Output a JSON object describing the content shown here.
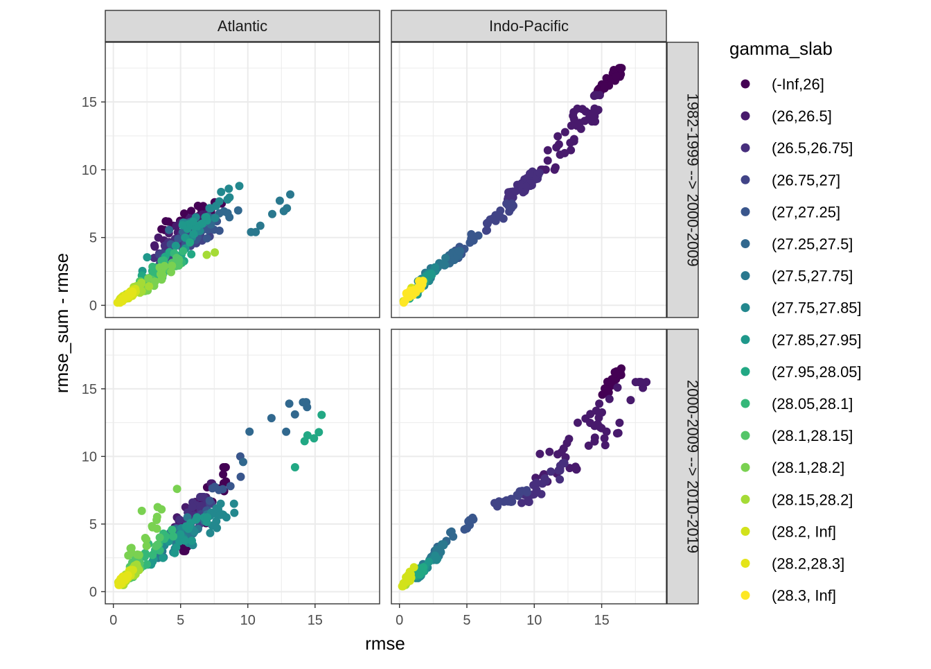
{
  "chart_data": {
    "type": "scatter",
    "xlabel": "rmse",
    "ylabel": "rmse_sum - rmse",
    "xlim": [
      -0.6,
      19.8
    ],
    "ylim": [
      -0.9,
      19.4
    ],
    "x_ticks": [
      0,
      5,
      10,
      15
    ],
    "y_ticks": [
      0,
      5,
      10,
      15
    ],
    "grid": true,
    "legend_placement": "right",
    "column_strips": [
      "Atlantic",
      "Indo-Pacific"
    ],
    "row_strips": [
      "1982-1999 --> 2000-2009",
      "2000-2009 --> 2010-2019"
    ],
    "legend": {
      "title": "gamma_slab",
      "entries": [
        {
          "label": "(-Inf,26]",
          "color": "#440154"
        },
        {
          "label": "(26,26.5]",
          "color": "#481a6c"
        },
        {
          "label": "(26.5,26.75]",
          "color": "#472f7d"
        },
        {
          "label": "(26.75,27]",
          "color": "#414487"
        },
        {
          "label": "(27,27.25]",
          "color": "#39568c"
        },
        {
          "label": "(27.25,27.5]",
          "color": "#31688e"
        },
        {
          "label": "(27.5,27.75]",
          "color": "#2a788e"
        },
        {
          "label": "(27.75,27.85]",
          "color": "#23888e"
        },
        {
          "label": "(27.85,27.95]",
          "color": "#1f988b"
        },
        {
          "label": "(27.95,28.05]",
          "color": "#22a884"
        },
        {
          "label": "(28.05,28.1]",
          "color": "#35b779"
        },
        {
          "label": "(28.1,28.15]",
          "color": "#54c568"
        },
        {
          "label": "(28.1,28.2]",
          "color": "#7ad151"
        },
        {
          "label": "(28.15,28.2]",
          "color": "#a5db36"
        },
        {
          "label": "(28.2, Inf]",
          "color": "#d2e21b"
        },
        {
          "label": "(28.2,28.3]",
          "color": "#e4e419"
        },
        {
          "label": "(28.3, Inf]",
          "color": "#fde725"
        }
      ]
    },
    "panels": [
      {
        "column": "Atlantic",
        "row": "1982-1999 --> 2000-2009",
        "clusters": [
          {
            "group": 0,
            "x_range": [
              3.0,
              8.2
            ],
            "y_range": [
              5.4,
              7.6
            ],
            "n": 28
          },
          {
            "group": 1,
            "x_range": [
              3.0,
              7.0
            ],
            "y_range": [
              4.2,
              6.8
            ],
            "n": 24
          },
          {
            "group": 2,
            "x_range": [
              3.0,
              6.5
            ],
            "y_range": [
              3.5,
              5.8
            ],
            "n": 22
          },
          {
            "group": 3,
            "x_range": [
              3.0,
              7.5
            ],
            "y_range": [
              3.0,
              5.5
            ],
            "n": 22
          },
          {
            "group": 4,
            "x_range": [
              3.5,
              8.0
            ],
            "y_range": [
              3.5,
              6.2
            ],
            "n": 18
          },
          {
            "group": 5,
            "x_range": [
              4.0,
              9.8
            ],
            "y_range": [
              5.4,
              7.0
            ],
            "n": 14
          },
          {
            "group": 6,
            "x_range": [
              10.0,
              13.8
            ],
            "y_range": [
              5.4,
              8.2
            ],
            "n": 8
          },
          {
            "group": 7,
            "x_range": [
              5.0,
              9.5
            ],
            "y_range": [
              5.0,
              8.8
            ],
            "n": 16
          },
          {
            "group": 8,
            "x_range": [
              2.0,
              7.0
            ],
            "y_range": [
              2.0,
              6.5
            ],
            "n": 22
          },
          {
            "group": 9,
            "x_range": [
              2.0,
              6.5
            ],
            "y_range": [
              1.5,
              5.0
            ],
            "n": 22
          },
          {
            "group": 10,
            "x_range": [
              1.5,
              5.5
            ],
            "y_range": [
              1.2,
              4.0
            ],
            "n": 20
          },
          {
            "group": 11,
            "x_range": [
              1.5,
              5.0
            ],
            "y_range": [
              1.0,
              3.5
            ],
            "n": 16
          },
          {
            "group": 12,
            "x_range": [
              1.0,
              4.5
            ],
            "y_range": [
              0.6,
              3.0
            ],
            "n": 14
          },
          {
            "group": 13,
            "x_range": [
              0.8,
              3.0
            ],
            "y_range": [
              0.5,
              2.0
            ],
            "n": 12
          },
          {
            "group": 14,
            "x_range": [
              0.3,
              1.8
            ],
            "y_range": [
              0.2,
              1.2
            ],
            "n": 20
          },
          {
            "group": 15,
            "x_range": [
              0.3,
              1.5
            ],
            "y_range": [
              0.2,
              1.0
            ],
            "n": 14
          },
          {
            "group": 13,
            "x_range": [
              6.2,
              7.7
            ],
            "y_range": [
              3.2,
              3.9
            ],
            "n": 2
          }
        ]
      },
      {
        "column": "Indo-Pacific",
        "row": "1982-1999 --> 2000-2009",
        "clusters": [
          {
            "group": 0,
            "x_range": [
              14.5,
              16.5
            ],
            "y_range": [
              15.5,
              17.5
            ],
            "n": 34
          },
          {
            "group": 1,
            "x_range": [
              10.5,
              15.0
            ],
            "y_range": [
              10.0,
              15.5
            ],
            "n": 40
          },
          {
            "group": 2,
            "x_range": [
              8.0,
              10.5
            ],
            "y_range": [
              7.8,
              10.0
            ],
            "n": 44
          },
          {
            "group": 3,
            "x_range": [
              6.0,
              8.5
            ],
            "y_range": [
              5.5,
              7.5
            ],
            "n": 18
          },
          {
            "group": 4,
            "x_range": [
              4.0,
              6.0
            ],
            "y_range": [
              3.5,
              5.5
            ],
            "n": 16
          },
          {
            "group": 5,
            "x_range": [
              2.5,
              4.5
            ],
            "y_range": [
              2.5,
              4.0
            ],
            "n": 18
          },
          {
            "group": 6,
            "x_range": [
              1.5,
              3.5
            ],
            "y_range": [
              1.5,
              3.5
            ],
            "n": 20
          },
          {
            "group": 7,
            "x_range": [
              1.0,
              2.8
            ],
            "y_range": [
              1.0,
              2.8
            ],
            "n": 16
          },
          {
            "group": 8,
            "x_range": [
              1.0,
              2.5
            ],
            "y_range": [
              0.8,
              2.5
            ],
            "n": 14
          },
          {
            "group": 9,
            "x_range": [
              0.6,
              2.0
            ],
            "y_range": [
              0.5,
              1.8
            ],
            "n": 10
          },
          {
            "group": 14,
            "x_range": [
              0.3,
              1.3
            ],
            "y_range": [
              0.3,
              1.5
            ],
            "n": 8
          },
          {
            "group": 16,
            "x_range": [
              0.0,
              1.8
            ],
            "y_range": [
              0.2,
              1.8
            ],
            "n": 22
          }
        ]
      },
      {
        "column": "Atlantic",
        "row": "2000-2009 --> 2010-2019",
        "clusters": [
          {
            "group": 0,
            "x_range": [
              5.0,
              8.5
            ],
            "y_range": [
              3.0,
              9.2
            ],
            "n": 24
          },
          {
            "group": 1,
            "x_range": [
              4.5,
              7.5
            ],
            "y_range": [
              4.5,
              8.0
            ],
            "n": 20
          },
          {
            "group": 2,
            "x_range": [
              4.0,
              7.0
            ],
            "y_range": [
              4.0,
              7.0
            ],
            "n": 18
          },
          {
            "group": 3,
            "x_range": [
              4.5,
              7.5
            ],
            "y_range": [
              4.0,
              6.5
            ],
            "n": 20
          },
          {
            "group": 4,
            "x_range": [
              6.5,
              10.0
            ],
            "y_range": [
              6.0,
              10.0
            ],
            "n": 10
          },
          {
            "group": 5,
            "x_range": [
              8.5,
              14.5
            ],
            "y_range": [
              9.5,
              14.0
            ],
            "n": 10
          },
          {
            "group": 6,
            "x_range": [
              3.0,
              7.0
            ],
            "y_range": [
              2.5,
              6.0
            ],
            "n": 24
          },
          {
            "group": 7,
            "x_range": [
              3.0,
              9.0
            ],
            "y_range": [
              2.5,
              6.5
            ],
            "n": 26
          },
          {
            "group": 8,
            "x_range": [
              2.5,
              7.0
            ],
            "y_range": [
              2.0,
              5.5
            ],
            "n": 24
          },
          {
            "group": 9,
            "x_range": [
              13.5,
              16.0
            ],
            "y_range": [
              9.2,
              13.3
            ],
            "n": 6
          },
          {
            "group": 10,
            "x_range": [
              1.5,
              4.5
            ],
            "y_range": [
              1.5,
              5.0
            ],
            "n": 18
          },
          {
            "group": 11,
            "x_range": [
              0.8,
              3.5
            ],
            "y_range": [
              1.0,
              4.0
            ],
            "n": 16
          },
          {
            "group": 12,
            "x_range": [
              1.0,
              3.5
            ],
            "y_range": [
              2.0,
              6.0
            ],
            "n": 14
          },
          {
            "group": 13,
            "x_range": [
              0.5,
              2.0
            ],
            "y_range": [
              0.5,
              2.0
            ],
            "n": 16
          },
          {
            "group": 14,
            "x_range": [
              0.3,
              1.5
            ],
            "y_range": [
              0.5,
              1.6
            ],
            "n": 20
          },
          {
            "group": 15,
            "x_range": [
              0.3,
              1.2
            ],
            "y_range": [
              0.5,
              1.4
            ],
            "n": 12
          },
          {
            "group": 12,
            "x_range": [
              2.0,
              5.0
            ],
            "y_range": [
              5.5,
              7.6
            ],
            "n": 4
          }
        ]
      },
      {
        "column": "Indo-Pacific",
        "row": "2000-2009 --> 2010-2019",
        "clusters": [
          {
            "group": 0,
            "x_range": [
              15.0,
              16.5
            ],
            "y_range": [
              14.5,
              16.5
            ],
            "n": 24
          },
          {
            "group": 1,
            "x_range": [
              10.0,
              18.5
            ],
            "y_range": [
              8.0,
              15.5
            ],
            "n": 52
          },
          {
            "group": 2,
            "x_range": [
              9.0,
              12.5
            ],
            "y_range": [
              6.5,
              9.5
            ],
            "n": 22
          },
          {
            "group": 3,
            "x_range": [
              7.0,
              9.5
            ],
            "y_range": [
              6.3,
              7.5
            ],
            "n": 20
          },
          {
            "group": 4,
            "x_range": [
              4.8,
              5.5
            ],
            "y_range": [
              4.5,
              5.5
            ],
            "n": 8
          },
          {
            "group": 5,
            "x_range": [
              2.5,
              4.0
            ],
            "y_range": [
              2.5,
              4.5
            ],
            "n": 16
          },
          {
            "group": 6,
            "x_range": [
              1.5,
              3.5
            ],
            "y_range": [
              1.5,
              3.5
            ],
            "n": 18
          },
          {
            "group": 7,
            "x_range": [
              1.0,
              3.0
            ],
            "y_range": [
              1.0,
              3.0
            ],
            "n": 14
          },
          {
            "group": 8,
            "x_range": [
              0.8,
              2.2
            ],
            "y_range": [
              0.8,
              2.2
            ],
            "n": 12
          },
          {
            "group": 9,
            "x_range": [
              0.5,
              1.8
            ],
            "y_range": [
              0.6,
              1.8
            ],
            "n": 10
          },
          {
            "group": 13,
            "x_range": [
              0.3,
              1.2
            ],
            "y_range": [
              0.5,
              1.5
            ],
            "n": 6
          },
          {
            "group": 14,
            "x_range": [
              0.2,
              1.3
            ],
            "y_range": [
              0.4,
              1.8
            ],
            "n": 14
          }
        ]
      }
    ]
  }
}
